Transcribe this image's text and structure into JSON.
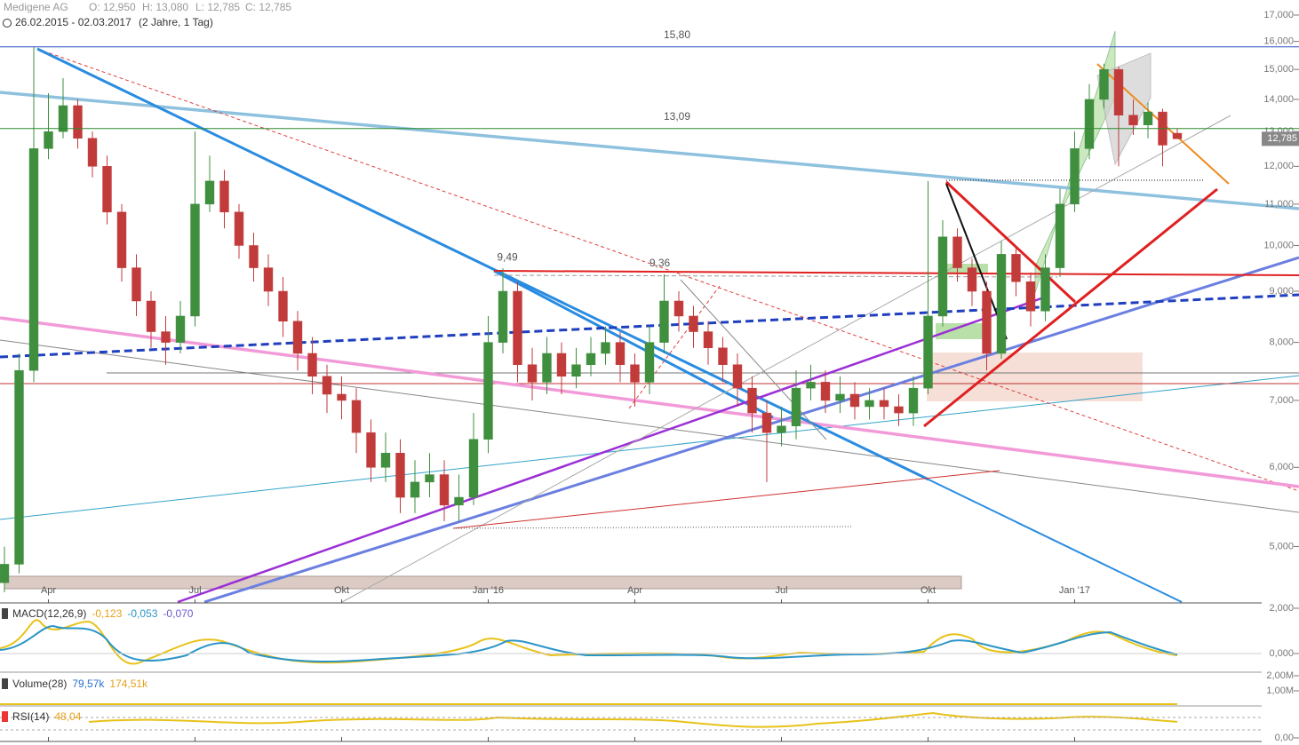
{
  "chart_data": {
    "type": "candlestick",
    "title": "Medigene AG",
    "ohlc_readout": [
      "O: 12,950",
      "H: 13,080",
      "L: 12,785",
      "C: 12,785"
    ],
    "date_range": "26.02.2015 - 02.03.2017",
    "period": "(2 Jahre, 1 Tag)",
    "categories": [
      null,
      null,
      null,
      "Apr",
      null,
      null,
      null,
      null,
      null,
      null,
      null,
      null,
      null,
      "Jul",
      null,
      null,
      null,
      null,
      null,
      null,
      null,
      null,
      null,
      "Okt",
      null,
      null,
      null,
      null,
      null,
      null,
      null,
      null,
      null,
      "Jan '16",
      null,
      null,
      null,
      null,
      null,
      null,
      null,
      null,
      null,
      "Apr",
      null,
      null,
      null,
      null,
      null,
      null,
      null,
      null,
      null,
      "Jul",
      null,
      null,
      null,
      null,
      null,
      null,
      null,
      null,
      null,
      "Okt",
      null,
      null,
      null,
      null,
      null,
      null,
      null,
      null,
      null,
      "Jan '17",
      null,
      null,
      null,
      null,
      null,
      null,
      null
    ],
    "open": [
      4.6,
      4.8,
      7.5,
      12.5,
      13.0,
      13.8,
      12.8,
      12.0,
      10.8,
      9.5,
      8.8,
      8.2,
      8.0,
      8.5,
      11.0,
      11.6,
      10.8,
      10.0,
      9.5,
      9.0,
      8.4,
      7.8,
      7.4,
      7.1,
      7.0,
      6.5,
      6.0,
      6.2,
      5.6,
      5.8,
      5.9,
      5.5,
      5.6,
      6.4,
      8.0,
      9.0,
      7.6,
      7.3,
      7.8,
      7.4,
      7.6,
      7.8,
      8.0,
      7.6,
      7.3,
      8.0,
      8.8,
      8.5,
      8.2,
      7.9,
      7.6,
      7.2,
      6.8,
      6.5,
      6.6,
      7.2,
      7.3,
      7.0,
      7.1,
      6.9,
      7.0,
      6.9,
      6.8,
      7.2,
      8.5,
      10.2,
      9.5,
      9.0,
      7.8,
      9.8,
      9.2,
      8.6,
      9.5,
      11.0,
      12.5,
      14.0,
      15.0,
      13.5,
      13.2,
      13.6,
      12.95
    ],
    "high": [
      5.0,
      7.8,
      15.8,
      14.2,
      14.7,
      14.0,
      13.0,
      12.3,
      11.0,
      9.8,
      9.0,
      8.5,
      8.8,
      13.0,
      12.3,
      11.9,
      11.0,
      10.3,
      9.8,
      9.3,
      8.6,
      8.1,
      7.6,
      7.4,
      7.2,
      6.7,
      6.5,
      6.4,
      6.1,
      6.2,
      6.1,
      5.9,
      6.8,
      8.5,
      9.49,
      9.2,
      7.9,
      8.1,
      8.0,
      7.9,
      8.1,
      8.3,
      8.2,
      7.8,
      8.3,
      9.36,
      9.0,
      8.7,
      8.4,
      8.1,
      7.8,
      7.4,
      7.0,
      6.9,
      7.5,
      7.6,
      7.5,
      7.4,
      7.3,
      7.2,
      7.2,
      7.1,
      7.4,
      11.6,
      10.6,
      10.4,
      9.7,
      9.2,
      10.1,
      10.0,
      9.4,
      9.8,
      11.4,
      13.0,
      14.5,
      15.2,
      15.1,
      14.0,
      13.9,
      13.7,
      13.08
    ],
    "low": [
      4.5,
      4.7,
      7.3,
      12.2,
      12.8,
      12.5,
      11.7,
      10.5,
      9.2,
      8.5,
      7.9,
      7.6,
      7.8,
      8.3,
      10.8,
      10.4,
      9.7,
      9.2,
      8.7,
      8.1,
      7.5,
      7.1,
      6.8,
      6.7,
      6.2,
      5.8,
      5.8,
      5.4,
      5.4,
      5.6,
      5.3,
      5.3,
      5.5,
      6.2,
      7.8,
      7.3,
      7.0,
      7.1,
      7.1,
      7.2,
      7.4,
      7.6,
      7.3,
      6.9,
      7.1,
      7.8,
      8.2,
      7.9,
      7.6,
      7.3,
      6.9,
      6.5,
      5.8,
      6.3,
      6.4,
      7.0,
      6.8,
      6.8,
      6.7,
      6.7,
      6.7,
      6.6,
      6.6,
      7.1,
      8.3,
      9.2,
      8.7,
      7.5,
      7.7,
      8.9,
      8.3,
      8.4,
      9.3,
      10.8,
      12.2,
      13.7,
      12.0,
      12.9,
      12.8,
      12.0,
      12.785
    ],
    "close": [
      4.8,
      7.5,
      12.5,
      13.0,
      13.8,
      12.8,
      12.0,
      10.8,
      9.5,
      8.8,
      8.2,
      8.0,
      8.5,
      11.0,
      11.6,
      10.8,
      10.0,
      9.5,
      9.0,
      8.4,
      7.8,
      7.4,
      7.1,
      7.0,
      6.5,
      6.0,
      6.2,
      5.6,
      5.8,
      5.9,
      5.5,
      5.6,
      6.4,
      8.0,
      9.0,
      7.6,
      7.3,
      7.8,
      7.4,
      7.6,
      7.8,
      8.0,
      7.6,
      7.3,
      8.0,
      8.8,
      8.5,
      8.2,
      7.9,
      7.6,
      7.2,
      6.8,
      6.5,
      6.6,
      7.2,
      7.3,
      7.0,
      7.1,
      6.9,
      7.0,
      6.9,
      6.8,
      7.2,
      8.5,
      10.2,
      9.5,
      9.0,
      7.8,
      9.8,
      9.2,
      8.6,
      9.5,
      11.0,
      12.5,
      14.0,
      15.0,
      13.5,
      13.2,
      13.6,
      12.6,
      12.785
    ],
    "up_color": "#3f8f3f",
    "down_color": "#c23b3b",
    "log_scale": true,
    "ylim": [
      4.4,
      17.6
    ],
    "yticks": [
      {
        "value": 17,
        "label": "17,000"
      },
      {
        "value": 16,
        "label": "16,000"
      },
      {
        "value": 15,
        "label": "15,000"
      },
      {
        "value": 14,
        "label": "14,000"
      },
      {
        "value": 13,
        "label": "13,000"
      },
      {
        "value": 12,
        "label": "12,000"
      },
      {
        "value": 11,
        "label": "11,000"
      },
      {
        "value": 10,
        "label": "10,000"
      },
      {
        "value": 9,
        "label": "9,000"
      },
      {
        "value": 8,
        "label": "8,000"
      },
      {
        "value": 7,
        "label": "7,000"
      },
      {
        "value": 6,
        "label": "6,000"
      },
      {
        "value": 5,
        "label": "5,000"
      }
    ],
    "last_price": {
      "value": 12.785,
      "label": "12,785"
    },
    "levels": [
      {
        "value": 15.8,
        "label": "15,80",
        "color": "#2f4fc0"
      },
      {
        "value": 13.09,
        "label": "13,09",
        "color": "#2a8a2a"
      }
    ],
    "annotations": [
      {
        "value": 9.49,
        "label": "9,49"
      },
      {
        "value": 9.36,
        "label": "9,36"
      }
    ],
    "panels": [
      {
        "title": "MACD(12,26,9)",
        "readouts": [
          "-0,123",
          "-0,053",
          "-0,070"
        ],
        "ticks": [
          "2,000",
          "0,000"
        ]
      },
      {
        "title": "Volume(28)",
        "readouts": [
          "79,57k",
          "174,51k"
        ],
        "ticks": [
          "2,00M",
          "1,00M"
        ]
      },
      {
        "title": "RSI(14)",
        "readouts": [
          "48,04"
        ],
        "ticks": [
          "0,00"
        ]
      }
    ]
  }
}
